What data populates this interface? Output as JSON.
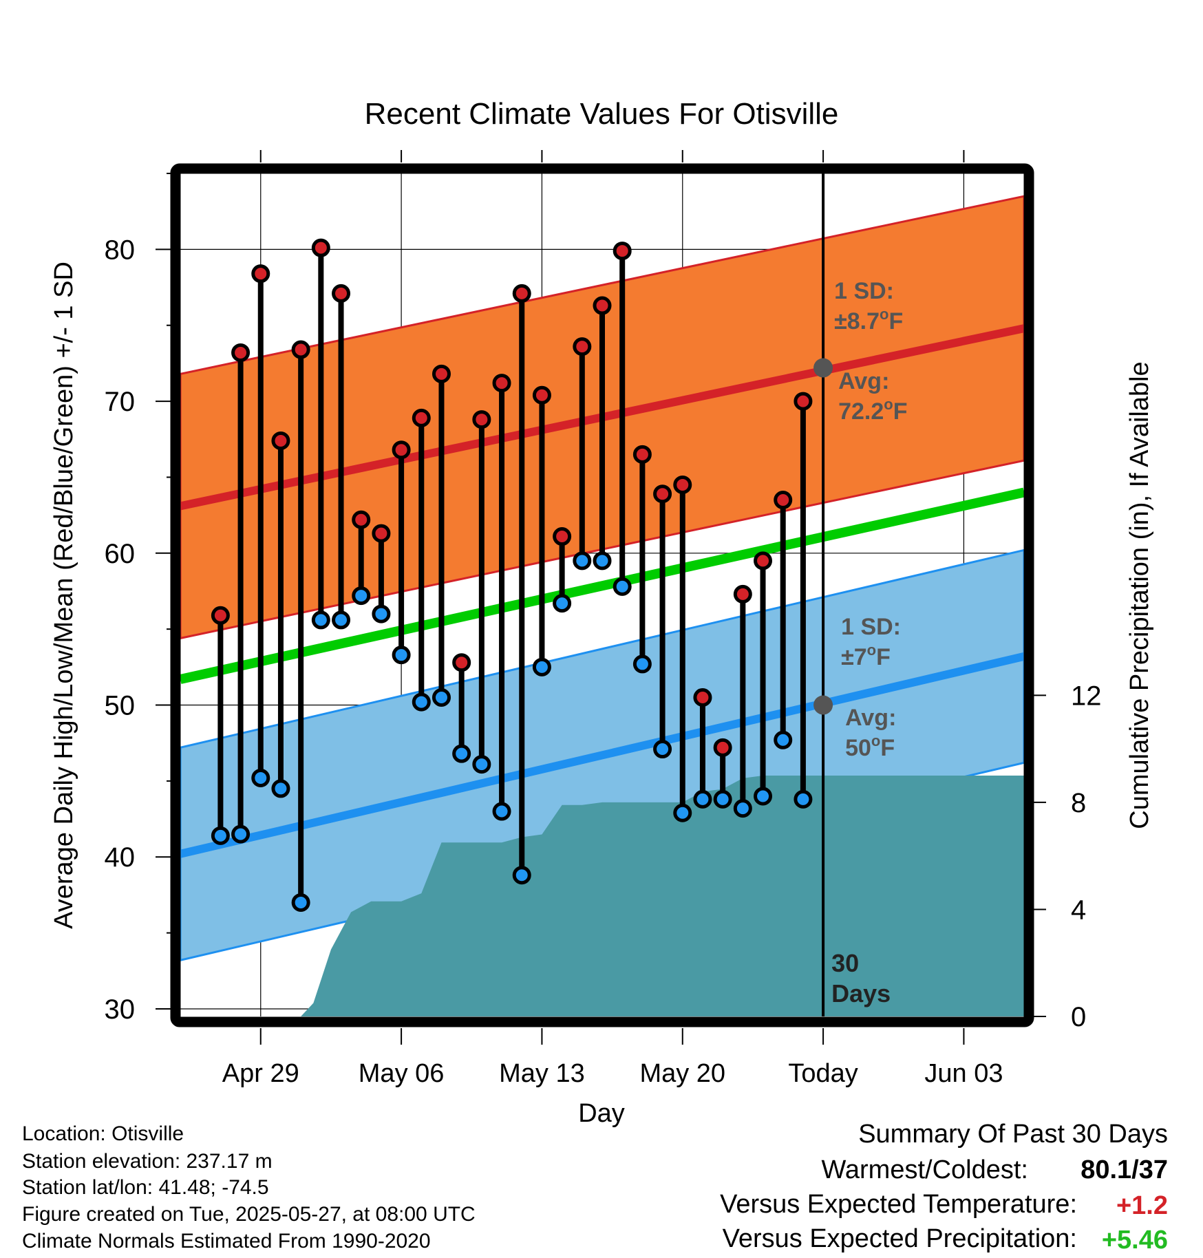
{
  "chart_data": {
    "type": "line",
    "title": "Recent Climate Values For Otisville",
    "xlabel": "Day",
    "ylabel": "Average Daily High/Low/Mean (Red/Blue/Green) +/- 1 SD",
    "y2label": "Cumulative Precipitation (in), If Available",
    "x_ticks": [
      "Apr 29",
      "May 06",
      "May 13",
      "May 20",
      "Today",
      "Jun 03"
    ],
    "x_range": [
      "2025-04-25",
      "2025-06-06"
    ],
    "ylim": [
      29.5,
      85
    ],
    "y_ticks": [
      30,
      40,
      50,
      60,
      70,
      80
    ],
    "y2lim": [
      0,
      31.5
    ],
    "y2_ticks": [
      0,
      4,
      8,
      12
    ],
    "grid": true,
    "normals": {
      "avg_high": {
        "start": 63.1,
        "end": 74.8,
        "today": 72.2
      },
      "avg_low": {
        "start": 40.2,
        "end": 53.2,
        "today": 50
      },
      "avg_mean": {
        "start": 51.7,
        "end": 64.0
      },
      "high_sd": 8.7,
      "low_sd": 7
    },
    "daily": [
      {
        "date": "2025-04-27",
        "high": 55.9,
        "low": 41.4
      },
      {
        "date": "2025-04-28",
        "high": 73.2,
        "low": 41.5
      },
      {
        "date": "2025-04-29",
        "high": 78.4,
        "low": 45.2
      },
      {
        "date": "2025-04-30",
        "high": 67.4,
        "low": 44.5
      },
      {
        "date": "2025-05-01",
        "high": 73.4,
        "low": 37.0
      },
      {
        "date": "2025-05-02",
        "high": 80.1,
        "low": 55.6
      },
      {
        "date": "2025-05-03",
        "high": 77.1,
        "low": 55.6
      },
      {
        "date": "2025-05-04",
        "high": 62.2,
        "low": 57.2
      },
      {
        "date": "2025-05-05",
        "high": 61.3,
        "low": 56.0
      },
      {
        "date": "2025-05-06",
        "high": 66.8,
        "low": 53.3
      },
      {
        "date": "2025-05-07",
        "high": 68.9,
        "low": 50.2
      },
      {
        "date": "2025-05-08",
        "high": 71.8,
        "low": 50.5
      },
      {
        "date": "2025-05-09",
        "high": 52.8,
        "low": 46.8
      },
      {
        "date": "2025-05-10",
        "high": 68.8,
        "low": 46.1
      },
      {
        "date": "2025-05-11",
        "high": 71.2,
        "low": 43.0
      },
      {
        "date": "2025-05-12",
        "high": 77.1,
        "low": 38.8
      },
      {
        "date": "2025-05-13",
        "high": 70.4,
        "low": 52.5
      },
      {
        "date": "2025-05-14",
        "high": 61.1,
        "low": 56.7
      },
      {
        "date": "2025-05-15",
        "high": 73.6,
        "low": 59.5
      },
      {
        "date": "2025-05-16",
        "high": 76.3,
        "low": 59.5
      },
      {
        "date": "2025-05-17",
        "high": 79.9,
        "low": 57.8
      },
      {
        "date": "2025-05-18",
        "high": 66.5,
        "low": 52.7
      },
      {
        "date": "2025-05-19",
        "high": 63.9,
        "low": 47.1
      },
      {
        "date": "2025-05-20",
        "high": 64.5,
        "low": 42.9
      },
      {
        "date": "2025-05-21",
        "high": 50.5,
        "low": 43.8
      },
      {
        "date": "2025-05-22",
        "high": 47.2,
        "low": 43.8
      },
      {
        "date": "2025-05-23",
        "high": 57.3,
        "low": 43.2
      },
      {
        "date": "2025-05-24",
        "high": 59.5,
        "low": 44.0
      },
      {
        "date": "2025-05-25",
        "high": 63.5,
        "low": 47.7
      },
      {
        "date": "2025-05-26",
        "high": 70.0,
        "low": 43.8
      }
    ],
    "cumulative_precip": [
      {
        "date": "2025-04-25",
        "value": 0
      },
      {
        "date": "2025-05-01",
        "value": 0
      },
      {
        "date": "2025-05-01T15:00",
        "value": 0.5
      },
      {
        "date": "2025-05-02T12:00",
        "value": 2.5
      },
      {
        "date": "2025-05-03T12:00",
        "value": 3.9
      },
      {
        "date": "2025-05-04T12:00",
        "value": 4.3
      },
      {
        "date": "2025-05-05",
        "value": 4.3
      },
      {
        "date": "2025-05-06",
        "value": 4.3
      },
      {
        "date": "2025-05-07",
        "value": 4.6
      },
      {
        "date": "2025-05-08",
        "value": 6.5
      },
      {
        "date": "2025-05-09",
        "value": 6.5
      },
      {
        "date": "2025-05-10",
        "value": 6.5
      },
      {
        "date": "2025-05-11",
        "value": 6.5
      },
      {
        "date": "2025-05-12",
        "value": 6.7
      },
      {
        "date": "2025-05-13",
        "value": 6.8
      },
      {
        "date": "2025-05-14",
        "value": 7.9
      },
      {
        "date": "2025-05-15",
        "value": 7.9
      },
      {
        "date": "2025-05-16",
        "value": 8.0
      },
      {
        "date": "2025-05-17",
        "value": 8.0
      },
      {
        "date": "2025-05-18",
        "value": 8.0
      },
      {
        "date": "2025-05-19",
        "value": 8.0
      },
      {
        "date": "2025-05-20",
        "value": 8.0
      },
      {
        "date": "2025-05-21",
        "value": 8.4
      },
      {
        "date": "2025-05-22",
        "value": 8.5
      },
      {
        "date": "2025-05-23",
        "value": 8.9
      },
      {
        "date": "2025-05-24",
        "value": 9.0
      },
      {
        "date": "2025-05-25",
        "value": 9.0
      },
      {
        "date": "2025-05-26",
        "value": 9.0
      },
      {
        "date": "2025-05-27",
        "value": 9.0
      },
      {
        "date": "2025-06-06",
        "value": 9.0
      }
    ],
    "annotations": {
      "high_sd_line1": "1 SD:",
      "high_sd_line2": "±8.7",
      "high_avg_line1": "Avg:",
      "high_avg_line2": "72.2",
      "low_sd_line1": "1 SD:",
      "low_sd_line2": "±7",
      "low_avg_line1": "Avg:",
      "low_avg_line2": "50",
      "degree": "o",
      "unit": "F",
      "days_line1": "30",
      "days_line2": "Days"
    }
  },
  "info": {
    "location": "Location: Otisville",
    "elevation": "Station elevation: 237.17 m",
    "latlon": "Station lat/lon: 41.48; -74.5",
    "created": "Figure created on Tue, 2025-05-27, at 08:00 UTC",
    "normals": "Climate Normals Estimated From 1990-2020"
  },
  "summary": {
    "title": "Summary Of Past 30 Days",
    "warm_cold_label": "Warmest/Coldest:",
    "warm_cold_value": "80.1/37",
    "temp_label": "Versus Expected Temperature:",
    "temp_value": "+1.2",
    "precip_label": "Versus Expected Precipitation:",
    "precip_value": "+5.46"
  },
  "colors": {
    "high_band": "#f47b30",
    "high_line": "#d42228",
    "low_band": "#7fbfe6",
    "low_line": "#1e90f0",
    "mean_line": "#00cc00",
    "precip_fill": "#4a9aa4",
    "high_marker": "#d42228",
    "low_marker": "#2196f3",
    "annotation": "#555555",
    "temp_delta": "#d42228",
    "precip_delta": "#22bb22"
  }
}
